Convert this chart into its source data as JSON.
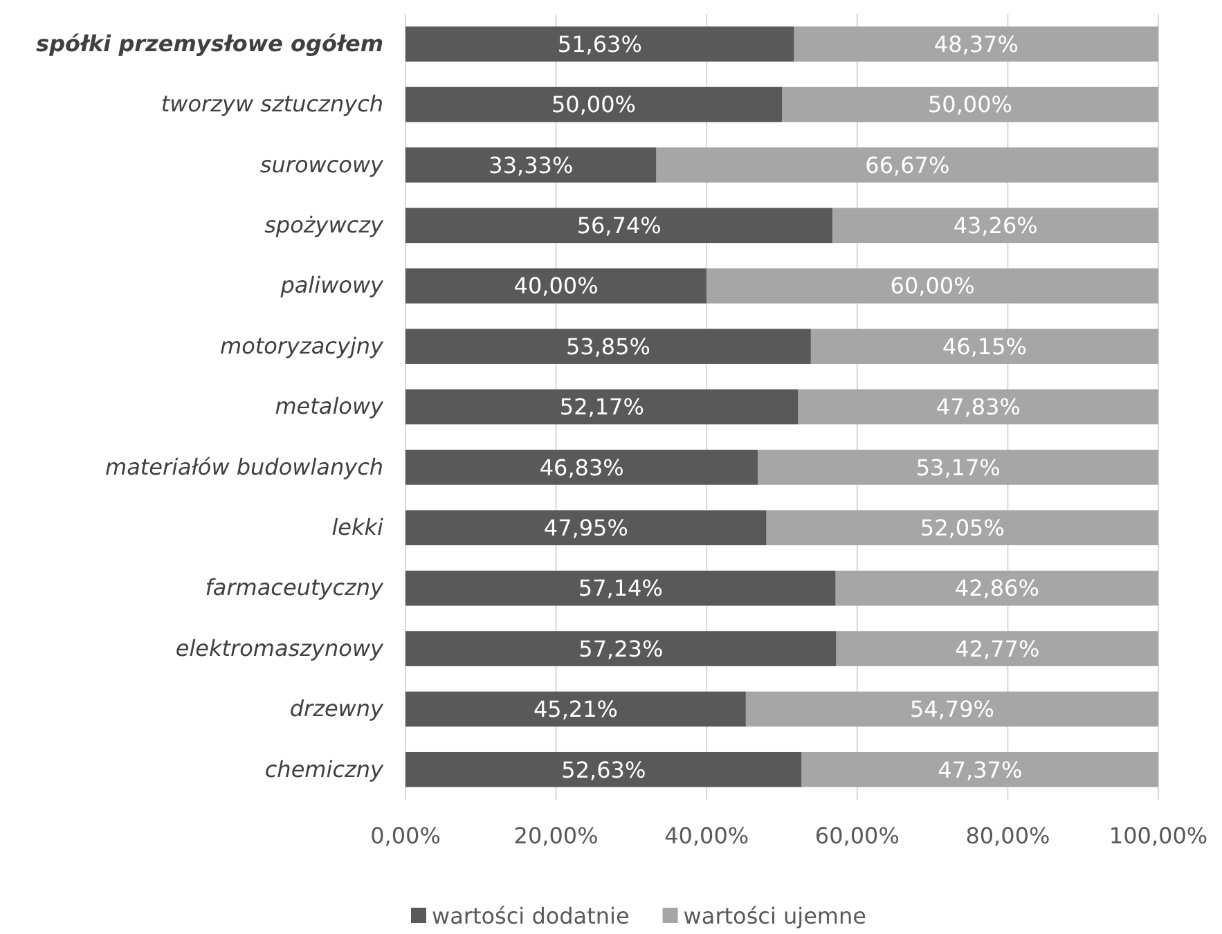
{
  "chart_data": {
    "type": "bar",
    "orientation": "horizontal",
    "stacked": true,
    "categories": [
      "spółki przemysłowe ogółem",
      "tworzyw sztucznych",
      "surowcowy",
      "spożywczy",
      "paliwowy",
      "motoryzacyjny",
      "metalowy",
      "materiałów budowlanych",
      "lekki",
      "farmaceutyczny",
      "elektromaszynowy",
      "drzewny",
      "chemiczny"
    ],
    "series": [
      {
        "name": "wartości dodatnie",
        "color": "#595959",
        "values": [
          51.63,
          50.0,
          33.33,
          56.74,
          40.0,
          53.85,
          52.17,
          46.83,
          47.95,
          57.14,
          57.23,
          45.21,
          52.63
        ],
        "value_labels": [
          "51,63%",
          "50,00%",
          "33,33%",
          "56,74%",
          "40,00%",
          "53,85%",
          "52,17%",
          "46,83%",
          "47,95%",
          "57,14%",
          "57,23%",
          "45,21%",
          "52,63%"
        ]
      },
      {
        "name": "wartości ujemne",
        "color": "#a6a6a6",
        "values": [
          48.37,
          50.0,
          66.67,
          43.26,
          60.0,
          46.15,
          47.83,
          53.17,
          52.05,
          42.86,
          42.77,
          54.79,
          47.37
        ],
        "value_labels": [
          "48,37%",
          "50,00%",
          "66,67%",
          "43,26%",
          "60,00%",
          "46,15%",
          "47,83%",
          "53,17%",
          "52,05%",
          "42,86%",
          "42,77%",
          "54,79%",
          "47,37%"
        ]
      }
    ],
    "xlim": [
      0,
      100
    ],
    "xticks": [
      {
        "value": 0,
        "label": "0,00%"
      },
      {
        "value": 20,
        "label": "20,00%"
      },
      {
        "value": 40,
        "label": "40,00%"
      },
      {
        "value": 60,
        "label": "60,00%"
      },
      {
        "value": 80,
        "label": "80,00%"
      },
      {
        "value": 100,
        "label": "100,00%"
      }
    ],
    "grid": "x",
    "legend": "bottom"
  }
}
